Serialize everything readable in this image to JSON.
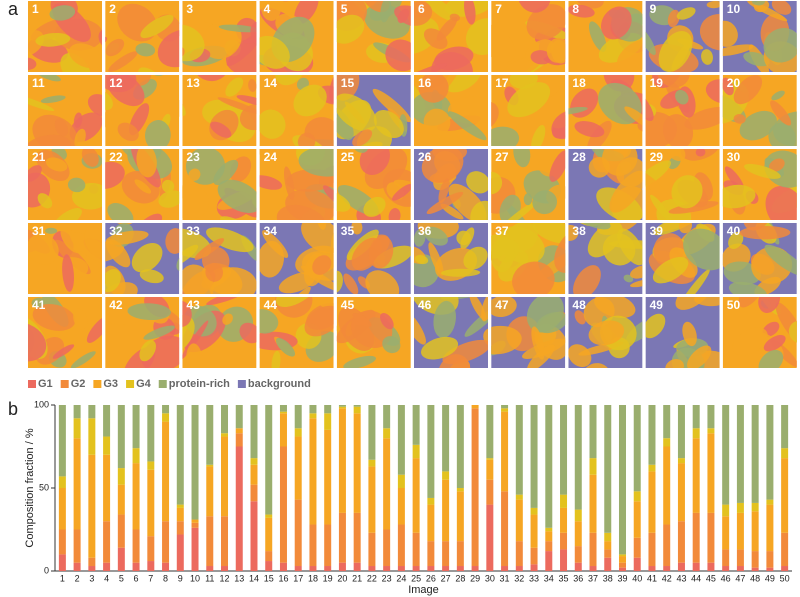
{
  "panel_a": {
    "label": "a",
    "image_labels": [
      "1",
      "2",
      "3",
      "4",
      "5",
      "6",
      "7",
      "8",
      "9",
      "10",
      "11",
      "12",
      "13",
      "14",
      "15",
      "16",
      "17",
      "18",
      "19",
      "20",
      "21",
      "22",
      "23",
      "24",
      "25",
      "26",
      "27",
      "28",
      "29",
      "30",
      "31",
      "32",
      "33",
      "34",
      "35",
      "36",
      "37",
      "38",
      "39",
      "40",
      "41",
      "42",
      "43",
      "44",
      "45",
      "46",
      "47",
      "48",
      "49",
      "50"
    ]
  },
  "chart_data": {
    "type": "stacked_bar",
    "panel_label": "b",
    "x_label": "Image",
    "y_label": "Composition fraction / %",
    "categories": [
      "1",
      "2",
      "3",
      "4",
      "5",
      "6",
      "7",
      "8",
      "9",
      "10",
      "11",
      "12",
      "13",
      "14",
      "15",
      "16",
      "17",
      "18",
      "19",
      "20",
      "21",
      "22",
      "23",
      "24",
      "25",
      "26",
      "27",
      "28",
      "29",
      "30",
      "31",
      "32",
      "33",
      "34",
      "35",
      "36",
      "37",
      "38",
      "39",
      "40",
      "41",
      "42",
      "43",
      "44",
      "45",
      "46",
      "47",
      "48",
      "49",
      "50"
    ],
    "ylim": [
      0,
      100
    ],
    "yticks": [
      0,
      50,
      100
    ],
    "series": [
      {
        "name": "G1",
        "color": "#ec6a5e",
        "values": [
          10,
          5,
          3,
          5,
          14,
          5,
          6,
          5,
          22,
          26,
          3,
          3,
          75,
          42,
          6,
          5,
          3,
          3,
          3,
          5,
          5,
          3,
          3,
          3,
          3,
          3,
          3,
          3,
          3,
          40,
          3,
          3,
          4,
          12,
          13,
          5,
          3,
          8,
          2,
          8,
          3,
          3,
          5,
          5,
          5,
          3,
          3,
          2,
          2,
          3
        ]
      },
      {
        "name": "G2",
        "color": "#f28a3a",
        "values": [
          15,
          20,
          5,
          25,
          20,
          20,
          15,
          25,
          8,
          3,
          30,
          30,
          8,
          10,
          6,
          70,
          40,
          25,
          25,
          30,
          30,
          20,
          22,
          25,
          20,
          15,
          15,
          15,
          95,
          15,
          45,
          15,
          10,
          6,
          10,
          10,
          20,
          5,
          3,
          12,
          20,
          25,
          25,
          30,
          30,
          10,
          10,
          10,
          10,
          20
        ]
      },
      {
        "name": "G3",
        "color": "#f6a623",
        "values": [
          25,
          55,
          62,
          40,
          18,
          40,
          40,
          60,
          8,
          2,
          30,
          48,
          3,
          12,
          20,
          20,
          38,
          64,
          57,
          63,
          60,
          40,
          55,
          22,
          45,
          22,
          37,
          30,
          2,
          12,
          48,
          25,
          20,
          6,
          15,
          15,
          35,
          5,
          4,
          22,
          37,
          47,
          35,
          45,
          48,
          20,
          22,
          24,
          28,
          45
        ]
      },
      {
        "name": "G4",
        "color": "#e3c21e",
        "values": [
          7,
          12,
          22,
          11,
          10,
          9,
          5,
          5,
          2,
          0,
          1,
          2,
          0,
          4,
          2,
          1,
          5,
          3,
          10,
          1,
          4,
          4,
          6,
          8,
          8,
          4,
          5,
          2,
          0,
          1,
          2,
          3,
          4,
          2,
          8,
          7,
          10,
          5,
          1,
          6,
          4,
          5,
          3,
          6,
          3,
          7,
          6,
          5,
          3,
          6
        ]
      },
      {
        "name": "protein-rich",
        "color": "#9aae6e",
        "values": [
          43,
          8,
          8,
          19,
          38,
          26,
          34,
          5,
          60,
          69,
          36,
          17,
          14,
          32,
          66,
          4,
          14,
          5,
          5,
          1,
          1,
          33,
          14,
          42,
          24,
          56,
          40,
          50,
          0,
          32,
          2,
          54,
          62,
          74,
          54,
          63,
          32,
          77,
          90,
          52,
          36,
          20,
          32,
          14,
          14,
          60,
          59,
          59,
          57,
          26
        ]
      }
    ],
    "extra_legend": {
      "name": "background",
      "color": "#7b77b4"
    }
  }
}
